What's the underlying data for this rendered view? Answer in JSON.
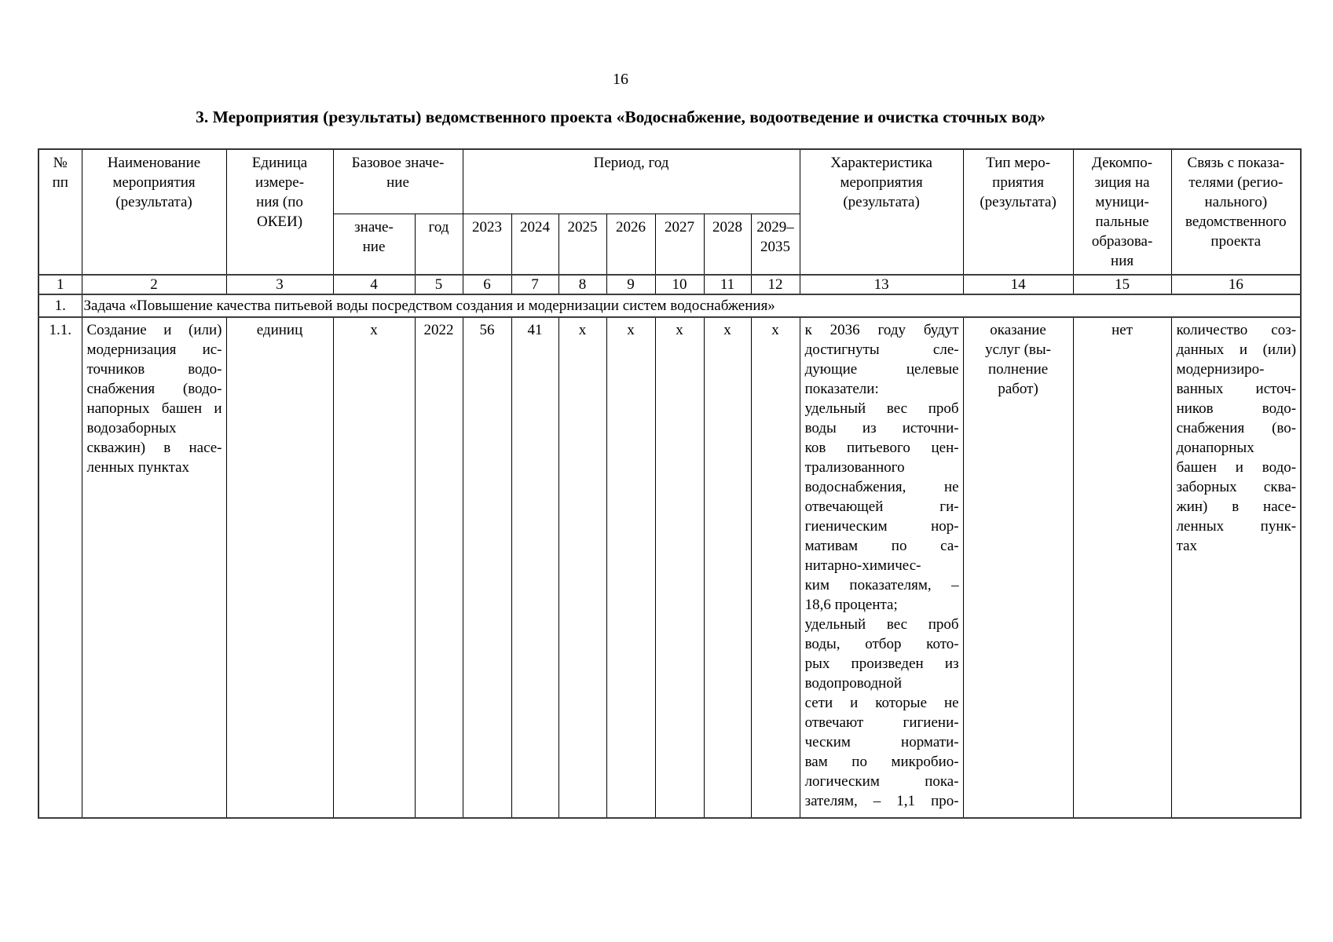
{
  "page": {
    "number": "16",
    "title": "3. Мероприятия (результаты) ведомственного проекта «Водоснабжение, водоотведение и очистка сточных вод»"
  },
  "table": {
    "header": {
      "no": [
        "№",
        "пп"
      ],
      "name": [
        "Наименование",
        "мероприятия",
        "(результата)"
      ],
      "unit": [
        "Единица",
        "измере-",
        "ния (по",
        "ОКЕИ)"
      ],
      "base": [
        "Базовое значе-",
        "ние"
      ],
      "base_value": [
        "значе-",
        "ние"
      ],
      "base_year": [
        "год"
      ],
      "period": [
        "Период, год"
      ],
      "years": [
        [
          "2023"
        ],
        [
          "2024"
        ],
        [
          "2025"
        ],
        [
          "2026"
        ],
        [
          "2027"
        ],
        [
          "2028"
        ],
        [
          "2029–",
          "2035"
        ]
      ],
      "characteristic": [
        "Характеристика",
        "мероприятия",
        "(результата)"
      ],
      "type": [
        "Тип меро-",
        "приятия",
        "(результата)"
      ],
      "decomposition": [
        "Декомпо-",
        "зиция на",
        "муници-",
        "пальные",
        "образова-",
        "ния"
      ],
      "relation": [
        "Связь с показа-",
        "телями (регио-",
        "нального)",
        "ведомственного",
        "проекта"
      ]
    },
    "col_numbers": [
      "1",
      "2",
      "3",
      "4",
      "5",
      "6",
      "7",
      "8",
      "9",
      "10",
      "11",
      "12",
      "13",
      "14",
      "15",
      "16"
    ],
    "task": {
      "no": "1.",
      "text": "Задача «Повышение качества питьевой воды посредством создания и модернизации систем водоснабжения»"
    },
    "row11": {
      "no": "1.1.",
      "name": [
        {
          "t": "Создание и (или)",
          "j": true
        },
        {
          "t": "модернизация ис-",
          "j": true
        },
        {
          "t": "точников водо-",
          "j": true
        },
        {
          "t": "снабжения (водо-",
          "j": true
        },
        {
          "t": "напорных башен и",
          "j": true
        },
        "водозаборных",
        {
          "t": "скважин) в насе-",
          "j": true
        },
        "ленных пунктах"
      ],
      "unit": "единиц",
      "base_value": "х",
      "base_year": "2022",
      "years": [
        "56",
        "41",
        "х",
        "х",
        "х",
        "х",
        "х"
      ],
      "characteristic": [
        {
          "t": "к 2036 году будут",
          "j": true
        },
        {
          "t": "достигнуты сле-",
          "j": true
        },
        {
          "t": "дующие целевые",
          "j": true
        },
        "показатели:",
        {
          "t": "удельный вес проб",
          "j": true
        },
        {
          "t": "воды из источни-",
          "j": true
        },
        {
          "t": "ков питьевого цен-",
          "j": true
        },
        "трализованного",
        {
          "t": "водоснабжения, не",
          "j": true
        },
        {
          "t": "отвечающей ги-",
          "j": true
        },
        {
          "t": "гиеническим нор-",
          "j": true
        },
        {
          "t": "мативам по са-",
          "j": true
        },
        "нитарно-химичес-",
        {
          "t": "ким показателям, –",
          "j": true
        },
        "18,6 процента;",
        {
          "t": "удельный вес проб",
          "j": true
        },
        {
          "t": "воды, отбор кото-",
          "j": true
        },
        {
          "t": "рых произведен из",
          "j": true
        },
        "водопроводной",
        {
          "t": "сети и которые не",
          "j": true
        },
        {
          "t": "отвечают гигиени-",
          "j": true
        },
        {
          "t": "ческим нормати-",
          "j": true
        },
        {
          "t": "вам по микробио-",
          "j": true
        },
        {
          "t": "логическим пока-",
          "j": true
        },
        {
          "t": "зателям, – 1,1 про-",
          "j": true
        }
      ],
      "type": [
        "оказание",
        "услуг (вы-",
        "полнение",
        "работ)"
      ],
      "decomposition": "нет",
      "relation": [
        {
          "t": "количество соз-",
          "j": true
        },
        {
          "t": "данных и (или)",
          "j": true
        },
        "модернизиро-",
        {
          "t": "ванных источ-",
          "j": true
        },
        {
          "t": "ников водо-",
          "j": true
        },
        {
          "t": "снабжения (во-",
          "j": true
        },
        "донапорных",
        {
          "t": "башен и водо-",
          "j": true
        },
        {
          "t": "заборных сква-",
          "j": true
        },
        {
          "t": "жин) в насе-",
          "j": true
        },
        {
          "t": "ленных пунк-",
          "j": true
        },
        "тах"
      ]
    }
  }
}
